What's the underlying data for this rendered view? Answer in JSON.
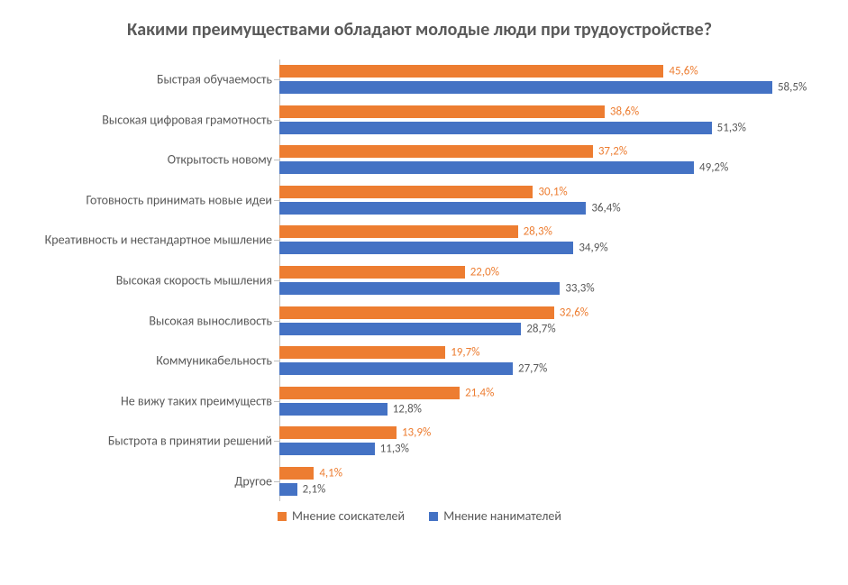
{
  "chart": {
    "type": "bar-horizontal-grouped",
    "title": "Какими преимуществами обладают молодые люди при трудоустройстве?",
    "title_color": "#595959",
    "title_fontsize": 20,
    "background_color": "#ffffff",
    "axis_color": "#bfbfbf",
    "label_color": "#595959",
    "label_fontsize": 14,
    "value_fontsize": 13,
    "xmax": 60,
    "categories": [
      "Быстрая обучаемость",
      "Высокая цифровая грамотность",
      "Открытость новому",
      "Готовность принимать новые идеи",
      "Креативность и нестандартное мышление",
      "Высокая скорость мышления",
      "Высокая выносливость",
      "Коммуникабельность",
      "Не вижу таких преимуществ",
      "Быстрота в принятии решений",
      "Другое"
    ],
    "series": [
      {
        "name": "Мнение соискателей",
        "color": "#ed7d31",
        "values": [
          45.6,
          38.6,
          37.2,
          30.1,
          28.3,
          22.0,
          32.6,
          19.7,
          21.4,
          13.9,
          4.1
        ],
        "labels": [
          "45,6%",
          "38,6%",
          "37,2%",
          "30,1%",
          "28,3%",
          "22,0%",
          "32,6%",
          "19,7%",
          "21,4%",
          "13,9%",
          "4,1%"
        ]
      },
      {
        "name": "Мнение нанимателей",
        "color": "#4472c4",
        "values": [
          58.5,
          51.3,
          49.2,
          36.4,
          34.9,
          33.3,
          28.7,
          27.7,
          12.8,
          11.3,
          2.1
        ],
        "labels": [
          "58,5%",
          "51,3%",
          "49,2%",
          "36,4%",
          "34,9%",
          "33,3%",
          "28,7%",
          "27,7%",
          "12,8%",
          "11,3%",
          "2,1%"
        ]
      }
    ],
    "legend": {
      "position": "bottom",
      "items": [
        "Мнение соискателей",
        "Мнение нанимателей"
      ]
    }
  }
}
